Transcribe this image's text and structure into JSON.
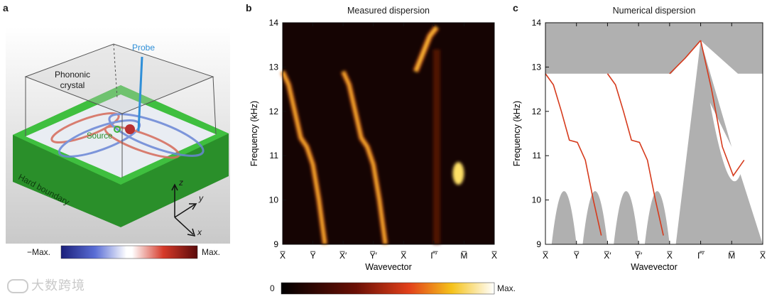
{
  "panels": {
    "a": {
      "letter": "a",
      "labels": {
        "probe": "Probe",
        "crystal": "Phononic\ncrystal",
        "source": "Source",
        "boundary": "Hard boundary",
        "z": "z",
        "y": "y",
        "x": "x"
      },
      "colorbar": {
        "min": "−Max.",
        "max": "Max."
      }
    },
    "b": {
      "letter": "b",
      "title": "Measured dispersion",
      "colorbar": {
        "min": "0",
        "max": "Max."
      }
    },
    "c": {
      "letter": "c",
      "title": "Numerical dispersion"
    }
  },
  "watermark": "大数跨境",
  "colors": {
    "band": "#b0b0b0",
    "curve": "#d63a1c",
    "green": "#3bb33b",
    "probe": "#2f8fd8"
  },
  "chart_data": [
    {
      "type": "heatmap",
      "title": "Measured dispersion",
      "xlabel": "Wavevector",
      "ylabel": "Frequency (kHz)",
      "ylim": [
        9,
        14
      ],
      "yticks": [
        9,
        10,
        11,
        12,
        13,
        14
      ],
      "xticks": [
        "X̅",
        "Y̅",
        "X̅′",
        "Y̅′",
        "X̅",
        "Γ̅′",
        "M̅",
        "X̅"
      ],
      "bright_ridges": [
        {
          "segment": "X-Y",
          "freq_khz": [
            12.9,
            12.6,
            12.0,
            11.4,
            11.2,
            10.8,
            10.0,
            9.0
          ]
        },
        {
          "segment": "X'-Y'",
          "freq_khz": [
            12.9,
            12.6,
            12.0,
            11.4,
            11.2,
            10.8,
            10.0,
            9.0
          ]
        },
        {
          "segment": "Gamma'",
          "freq_khz": [
            12.9,
            13.3,
            13.7,
            13.9
          ]
        },
        {
          "segment": "M",
          "freq_khz": [
            10.6
          ]
        }
      ]
    },
    {
      "type": "line",
      "title": "Numerical dispersion",
      "xlabel": "Wavevector",
      "ylabel": "Frequency (kHz)",
      "ylim": [
        9,
        14
      ],
      "yticks": [
        9,
        10,
        11,
        12,
        13,
        14
      ],
      "xticks": [
        "X̅",
        "Y̅",
        "X̅′",
        "Y̅′",
        "X̅",
        "Γ̅′",
        "M̅",
        "X̅"
      ],
      "series": [
        {
          "segment": "X-Y",
          "freq_khz": [
            12.85,
            12.6,
            12.0,
            11.35,
            11.3,
            10.9,
            10.0,
            9.2
          ]
        },
        {
          "segment": "X'-Y'",
          "freq_khz": [
            12.85,
            12.6,
            12.0,
            11.35,
            11.3,
            10.9,
            10.0,
            9.2
          ]
        },
        {
          "segment": "X-Gamma'",
          "freq_khz": [
            12.85,
            13.2,
            13.6
          ]
        },
        {
          "segment": "Gamma'-M",
          "freq_khz": [
            13.6,
            12.5,
            11.2,
            10.55,
            10.9
          ]
        }
      ]
    }
  ]
}
